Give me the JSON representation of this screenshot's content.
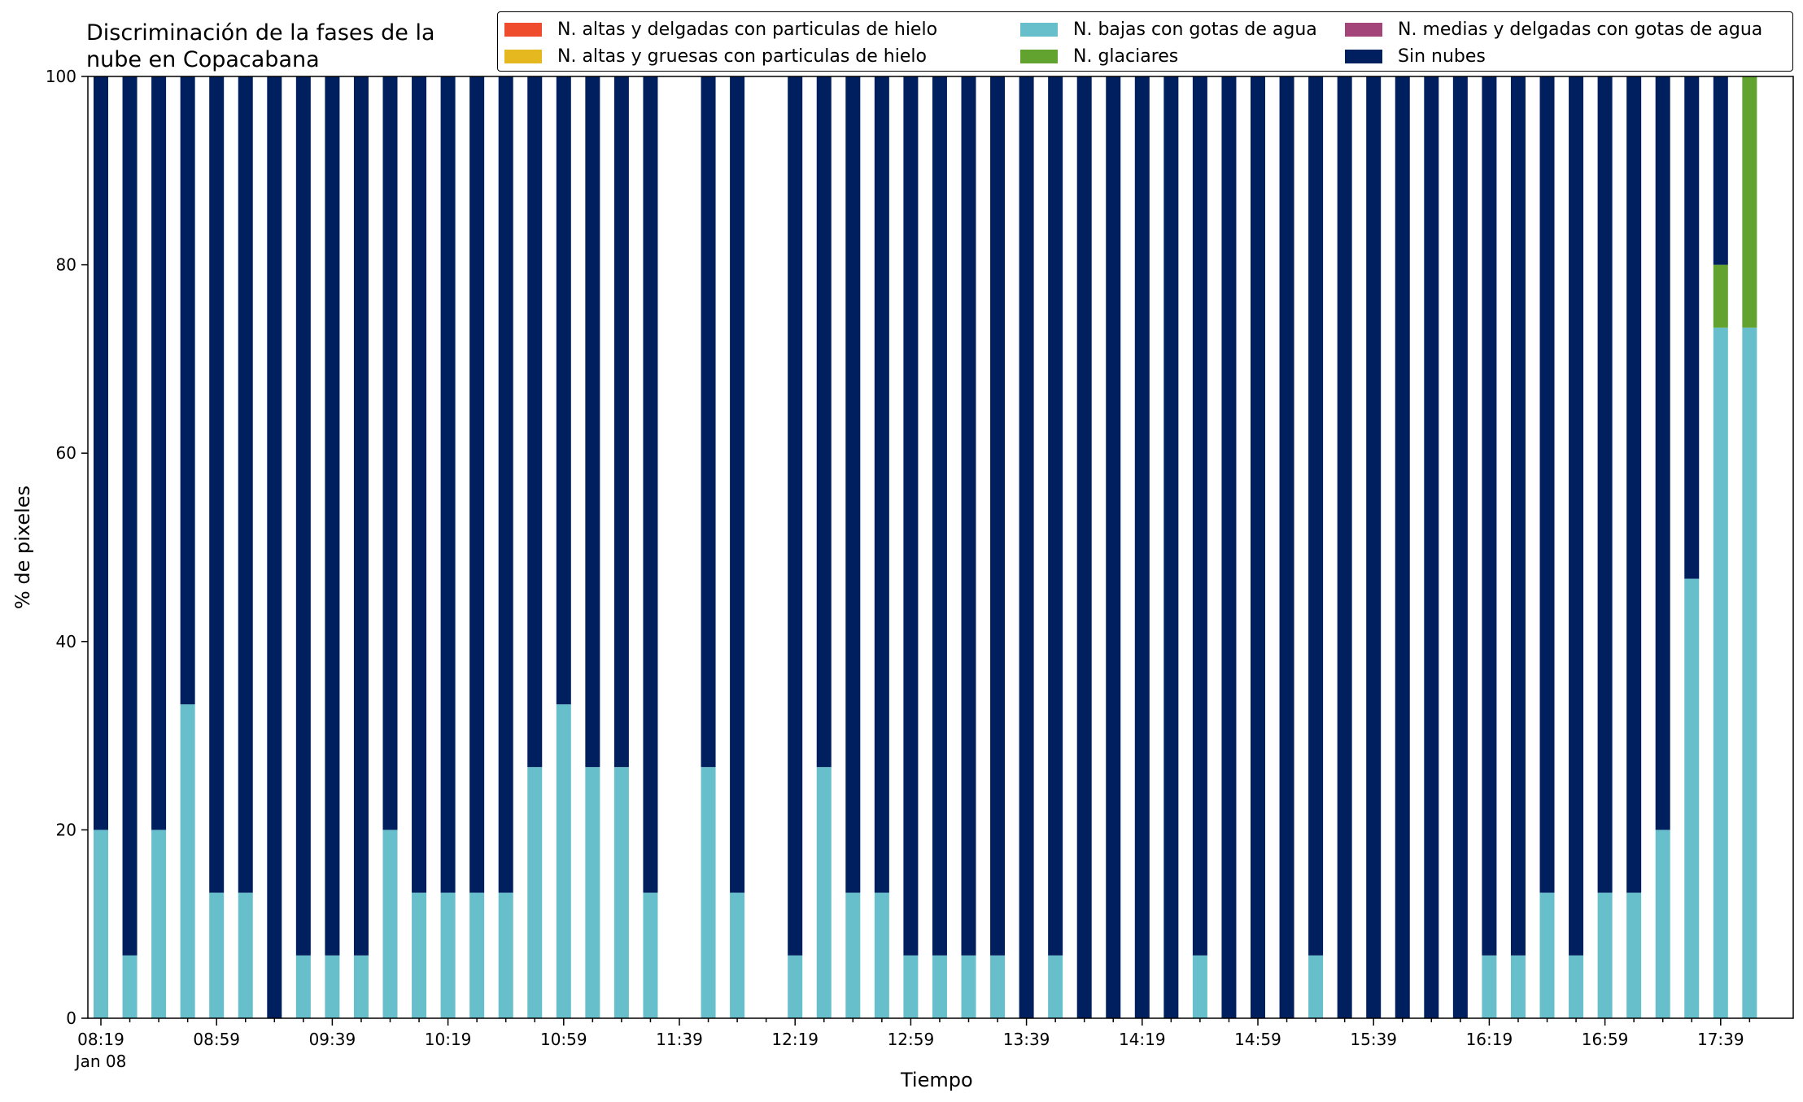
{
  "chart_data": {
    "type": "bar",
    "stacked": true,
    "title_lines": [
      "Discriminación de la fases de la",
      "nube en Copacabana"
    ],
    "xlabel": "Tiempo",
    "ylabel": "% de pixeles",
    "ylim": [
      0,
      100
    ],
    "yticks": [
      0,
      20,
      40,
      60,
      80,
      100
    ],
    "xtick_labels": [
      "08:19",
      "08:59",
      "09:39",
      "10:19",
      "10:59",
      "11:39",
      "12:19",
      "12:59",
      "13:39",
      "14:19",
      "14:59",
      "15:39",
      "16:19",
      "16:59",
      "17:39"
    ],
    "xtick_date_label": "Jan 08",
    "legend_position": "top-right",
    "legend_columns": 3,
    "categories": [
      "08:19",
      "08:29",
      "08:39",
      "08:49",
      "08:59",
      "09:09",
      "09:19",
      "09:29",
      "09:39",
      "09:49",
      "09:59",
      "10:09",
      "10:19",
      "10:29",
      "10:39",
      "10:49",
      "10:59",
      "11:09",
      "11:19",
      "11:29",
      "11:39",
      "11:49",
      "11:59",
      "12:09",
      "12:19",
      "12:29",
      "12:39",
      "12:49",
      "12:59",
      "13:09",
      "13:19",
      "13:29",
      "13:39",
      "13:49",
      "13:59",
      "14:09",
      "14:19",
      "14:29",
      "14:39",
      "14:49",
      "14:59",
      "15:09",
      "15:19",
      "15:29",
      "15:39",
      "15:49",
      "15:59",
      "16:09",
      "16:19",
      "16:29",
      "16:39",
      "16:49",
      "16:59",
      "17:09",
      "17:19",
      "17:29",
      "17:39",
      "17:49"
    ],
    "series": [
      {
        "name": "N. altas y delgadas con particulas de hielo",
        "color": "#ee4c2c",
        "values": [
          0,
          0,
          0,
          0,
          0,
          0,
          0,
          0,
          0,
          0,
          0,
          0,
          0,
          0,
          0,
          0,
          0,
          0,
          0,
          0,
          0,
          0,
          0,
          0,
          0,
          0,
          0,
          0,
          0,
          0,
          0,
          0,
          0,
          0,
          0,
          0,
          0,
          0,
          0,
          0,
          0,
          0,
          0,
          0,
          0,
          0,
          0,
          0,
          0,
          0,
          0,
          0,
          0,
          0,
          0,
          0,
          0,
          0
        ]
      },
      {
        "name": "N. altas y gruesas con particulas de hielo",
        "color": "#e6b820",
        "values": [
          0,
          0,
          0,
          0,
          0,
          0,
          0,
          0,
          0,
          0,
          0,
          0,
          0,
          0,
          0,
          0,
          0,
          0,
          0,
          0,
          0,
          0,
          0,
          0,
          0,
          0,
          0,
          0,
          0,
          0,
          0,
          0,
          0,
          0,
          0,
          0,
          0,
          0,
          0,
          0,
          0,
          0,
          0,
          0,
          0,
          0,
          0,
          0,
          0,
          0,
          0,
          0,
          0,
          0,
          0,
          0,
          0,
          0
        ]
      },
      {
        "name": "N. bajas con gotas de agua",
        "color": "#66bfcb",
        "values": [
          20,
          6.67,
          20,
          33.33,
          13.33,
          13.33,
          0,
          6.67,
          6.67,
          6.67,
          20,
          13.33,
          13.33,
          13.33,
          13.33,
          26.67,
          33.33,
          26.67,
          26.67,
          13.33,
          0,
          26.67,
          13.33,
          0,
          6.67,
          26.67,
          13.33,
          13.33,
          6.67,
          6.67,
          6.67,
          6.67,
          0,
          6.67,
          0,
          0,
          0,
          0,
          6.67,
          0,
          0,
          0,
          6.67,
          0,
          0,
          0,
          0,
          0,
          6.67,
          6.67,
          13.33,
          6.67,
          13.33,
          13.33,
          20,
          46.67,
          73.33,
          73.33
        ]
      },
      {
        "name": "N. glaciares",
        "color": "#62a22f",
        "values": [
          0,
          0,
          0,
          0,
          0,
          0,
          0,
          0,
          0,
          0,
          0,
          0,
          0,
          0,
          0,
          0,
          0,
          0,
          0,
          0,
          0,
          0,
          0,
          0,
          0,
          0,
          0,
          0,
          0,
          0,
          0,
          0,
          0,
          0,
          0,
          0,
          0,
          0,
          0,
          0,
          0,
          0,
          0,
          0,
          0,
          0,
          0,
          0,
          0,
          0,
          0,
          0,
          0,
          0,
          0,
          0,
          6.67,
          26.67
        ]
      },
      {
        "name": "N. medias y delgadas con gotas de agua",
        "color": "#a4457a",
        "values": [
          0,
          0,
          0,
          0,
          0,
          0,
          0,
          0,
          0,
          0,
          0,
          0,
          0,
          0,
          0,
          0,
          0,
          0,
          0,
          0,
          0,
          0,
          0,
          0,
          0,
          0,
          0,
          0,
          0,
          0,
          0,
          0,
          0,
          0,
          0,
          0,
          0,
          0,
          0,
          0,
          0,
          0,
          0,
          0,
          0,
          0,
          0,
          0,
          0,
          0,
          0,
          0,
          0,
          0,
          0,
          0,
          0,
          0
        ]
      },
      {
        "name": "Sin nubes",
        "color": "#001f5f",
        "values": [
          80,
          93.33,
          80,
          66.67,
          86.67,
          86.67,
          100,
          93.33,
          93.33,
          93.33,
          80,
          86.67,
          86.67,
          86.67,
          86.67,
          73.33,
          66.67,
          73.33,
          73.33,
          86.67,
          0,
          73.33,
          86.67,
          0,
          93.33,
          73.33,
          86.67,
          86.67,
          93.33,
          93.33,
          93.33,
          93.33,
          100,
          93.33,
          100,
          100,
          100,
          100,
          93.33,
          100,
          100,
          100,
          93.33,
          100,
          100,
          100,
          100,
          100,
          93.33,
          93.33,
          86.67,
          93.33,
          86.67,
          86.67,
          80,
          53.33,
          20,
          0
        ]
      }
    ]
  },
  "legend": {
    "items": [
      {
        "label": "N. altas y delgadas con particulas de hielo",
        "color": "#ee4c2c"
      },
      {
        "label": "N. altas y gruesas con particulas de hielo",
        "color": "#e6b820"
      },
      {
        "label": "N. bajas con gotas de agua",
        "color": "#66bfcb"
      },
      {
        "label": "N. glaciares",
        "color": "#62a22f"
      },
      {
        "label": "N. medias y delgadas con gotas de agua",
        "color": "#a4457a"
      },
      {
        "label": "Sin nubes",
        "color": "#001f5f"
      }
    ]
  }
}
